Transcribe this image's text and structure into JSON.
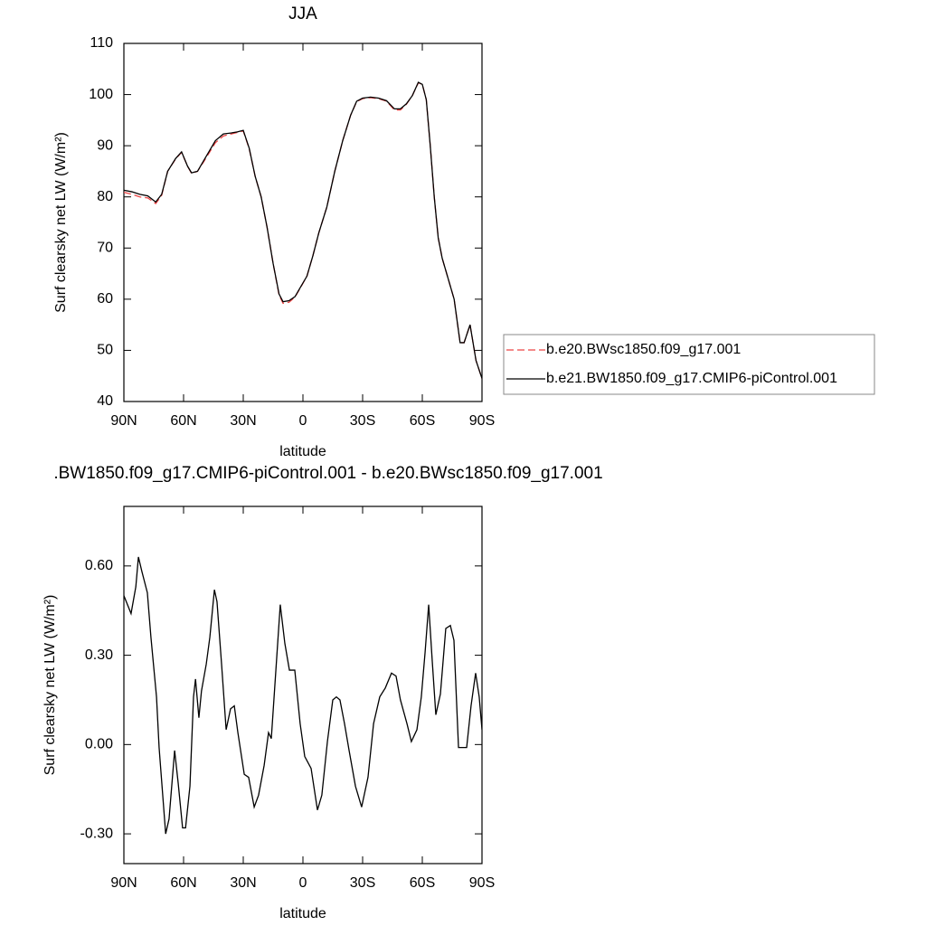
{
  "chart_data": [
    {
      "type": "line",
      "title": "JJA",
      "x_label": "latitude",
      "y_label": "Surf clearsky net LW (W/m²)",
      "x": [
        90,
        86,
        82,
        78,
        74,
        71,
        68,
        64,
        61,
        58,
        56,
        53,
        50,
        47,
        44,
        40,
        36,
        33,
        30,
        27,
        24,
        21,
        18,
        15,
        12,
        10,
        7,
        4,
        1,
        -2,
        -5,
        -8,
        -12,
        -16,
        -20,
        -24,
        -27,
        -30,
        -34,
        -38,
        -42,
        -46,
        -49,
        -52,
        -55,
        -58,
        -60,
        -62,
        -64,
        -66,
        -68,
        -70,
        -73,
        -76,
        -79,
        -81,
        -84,
        -87,
        -90
      ],
      "series": [
        {
          "name": "b.e20.BWsc1850.f09_g17.001",
          "color": "#ee4444",
          "dashed": true,
          "values": [
            80.9,
            80.5,
            80.0,
            79.8,
            78.7,
            80.3,
            85.0,
            87.4,
            88.7,
            86.0,
            84.6,
            85.0,
            86.8,
            88.7,
            90.6,
            91.9,
            92.3,
            92.6,
            92.9,
            89.4,
            84,
            80,
            74,
            67,
            60.8,
            59.2,
            59.4,
            60.4,
            62.4,
            64.5,
            68.5,
            73,
            78,
            85,
            91,
            96,
            98.6,
            99.2,
            99.4,
            99.2,
            98.7,
            97.0,
            97.0,
            98.1,
            99.8,
            102.3,
            102.0,
            99,
            90,
            80,
            72,
            68,
            64,
            60,
            51.5,
            51.5,
            55,
            48,
            44.5
          ]
        },
        {
          "name": "b.e21.BW1850.f09_g17.CMIP6-piControl.001",
          "color": "#000000",
          "dashed": false,
          "values": [
            81.3,
            81.0,
            80.5,
            80.2,
            79.0,
            80.5,
            85.0,
            87.5,
            88.8,
            86.0,
            84.7,
            85.0,
            87.0,
            89.0,
            91.0,
            92.3,
            92.5,
            92.7,
            93.0,
            89.5,
            84,
            80,
            74,
            67,
            61,
            59.5,
            59.7,
            60.5,
            62.5,
            64.5,
            68.5,
            73,
            78,
            85,
            91,
            96,
            98.7,
            99.3,
            99.5,
            99.3,
            98.8,
            97.2,
            97.2,
            98.2,
            99.8,
            102.4,
            102.0,
            99,
            90,
            80,
            72,
            68,
            64,
            60,
            51.5,
            51.5,
            55,
            48,
            44.5
          ]
        }
      ],
      "xlim": [
        90,
        -90
      ],
      "xticks": [
        {
          "value": 90,
          "label": "90N"
        },
        {
          "value": 60,
          "label": "60N"
        },
        {
          "value": 30,
          "label": "30N"
        },
        0,
        {
          "value": -30,
          "label": "30S"
        },
        {
          "value": -60,
          "label": "60S"
        },
        {
          "value": -90,
          "label": "90S"
        }
      ],
      "ylim": [
        40,
        110
      ],
      "yticks": [
        40,
        50,
        60,
        70,
        80,
        90,
        100,
        110
      ],
      "legend": "right"
    },
    {
      "type": "line",
      "title": ".BW1850.f09_g17.CMIP6-piControl.001 - b.e20.BWsc1850.f09_g17.001",
      "x_label": "latitude",
      "y_label": "Surf clearsky net LW (W/m²)",
      "x": [
        90,
        86.4,
        84,
        82.7,
        80.9,
        78.2,
        76.4,
        73.6,
        72.3,
        69,
        67.3,
        64.5,
        62.7,
        60.5,
        59,
        56.8,
        55,
        54,
        52.3,
        51,
        48.6,
        46.8,
        44.5,
        43.2,
        40.9,
        38.6,
        36.4,
        34.5,
        32.7,
        29.5,
        27.3,
        24.5,
        22.3,
        19.5,
        17.3,
        15.9,
        13.6,
        11.4,
        9.1,
        6.8,
        4.1,
        1.4,
        -0.9,
        -4.1,
        -7.3,
        -9.5,
        -12.3,
        -15,
        -16.8,
        -18.6,
        -20.9,
        -23.2,
        -26.4,
        -29.5,
        -32.7,
        -35.5,
        -38.6,
        -41.4,
        -44.5,
        -46.8,
        -49,
        -52.3,
        -54.5,
        -57.3,
        -59.5,
        -61.4,
        -63.2,
        -65,
        -66.8,
        -69.1,
        -71.8,
        -74.1,
        -75.9,
        -78.2,
        -80.5,
        -82.3,
        -84.5,
        -86.8,
        -88.6,
        -90
      ],
      "series": [
        {
          "color": "#000000",
          "dashed": false,
          "values": [
            0.5,
            0.44,
            0.53,
            0.63,
            0.58,
            0.51,
            0.36,
            0.16,
            -0.01,
            -0.3,
            -0.25,
            -0.02,
            -0.13,
            -0.28,
            -0.28,
            -0.14,
            0.16,
            0.22,
            0.09,
            0.18,
            0.27,
            0.36,
            0.52,
            0.48,
            0.27,
            0.05,
            0.12,
            0.13,
            0.04,
            -0.1,
            -0.11,
            -0.21,
            -0.17,
            -0.07,
            0.04,
            0.02,
            0.25,
            0.47,
            0.34,
            0.25,
            0.25,
            0.07,
            -0.04,
            -0.08,
            -0.22,
            -0.17,
            0.01,
            0.15,
            0.16,
            0.15,
            0.07,
            -0.02,
            -0.14,
            -0.21,
            -0.11,
            0.07,
            0.16,
            0.19,
            0.24,
            0.23,
            0.15,
            0.07,
            0.01,
            0.05,
            0.16,
            0.31,
            0.47,
            0.28,
            0.1,
            0.17,
            0.39,
            0.4,
            0.35,
            -0.01,
            -0.01,
            -0.01,
            0.13,
            0.24,
            0.16,
            0.05
          ]
        }
      ],
      "xlim": [
        90,
        -90
      ],
      "xticks": [
        {
          "value": 90,
          "label": "90N"
        },
        {
          "value": 60,
          "label": "60N"
        },
        {
          "value": 30,
          "label": "30N"
        },
        0,
        {
          "value": -30,
          "label": "30S"
        },
        {
          "value": -60,
          "label": "60S"
        },
        {
          "value": -90,
          "label": "90S"
        }
      ],
      "ylim": [
        -0.4,
        0.8
      ],
      "yticks": [
        {
          "value": -0.3,
          "label": "-0.30"
        },
        {
          "value": 0,
          "label": "0.00"
        },
        {
          "value": 0.3,
          "label": "0.30"
        },
        {
          "value": 0.6,
          "label": "0.60"
        }
      ]
    }
  ]
}
